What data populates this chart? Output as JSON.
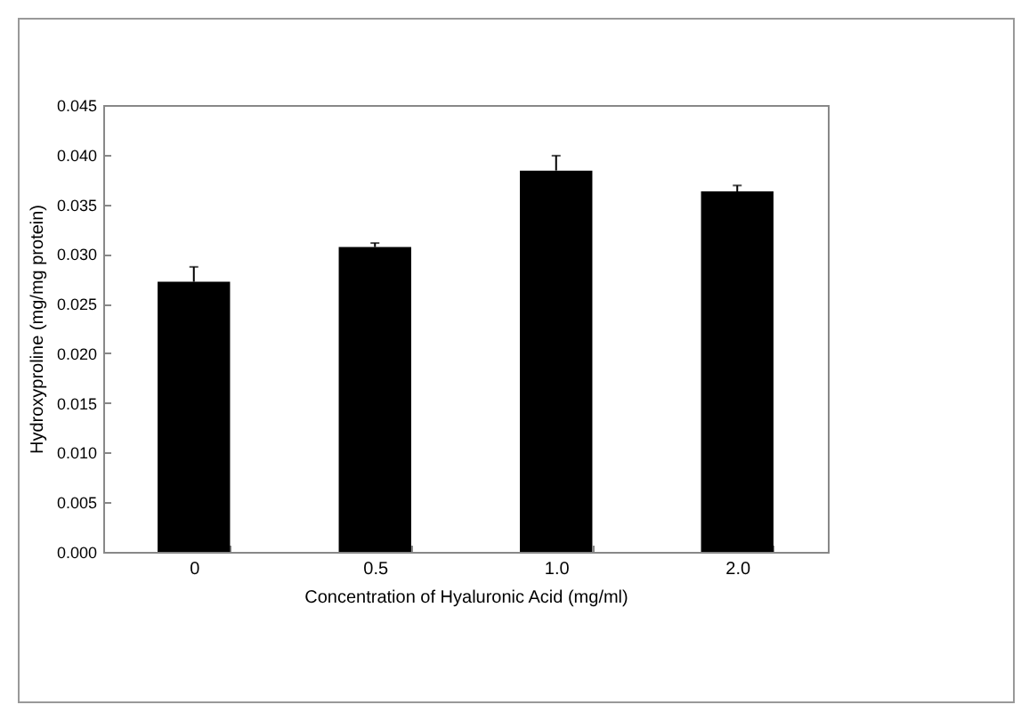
{
  "chart_data": {
    "type": "bar",
    "xlabel": "Concentration of Hyaluronic Acid (mg/ml)",
    "ylabel": "Hydroxyproline (mg/mg protein)",
    "categories": [
      "0",
      "0.5",
      "1.0",
      "2.0"
    ],
    "values": [
      0.0272,
      0.0307,
      0.0384,
      0.0363
    ],
    "errors": [
      0.0015,
      0.0004,
      0.0015,
      0.0006
    ],
    "color": "#000000",
    "ylim": [
      0,
      0.045
    ],
    "yticks": [
      {
        "value": 0,
        "label": "0.000"
      },
      {
        "value": 0.005,
        "label": "0.005"
      },
      {
        "value": 0.01,
        "label": "0.010"
      },
      {
        "value": 0.015,
        "label": "0.015"
      },
      {
        "value": 0.02,
        "label": "0.020"
      },
      {
        "value": 0.025,
        "label": "0.025"
      },
      {
        "value": 0.03,
        "label": "0.030"
      },
      {
        "value": 0.035,
        "label": "0.035"
      },
      {
        "value": 0.04,
        "label": "0.040"
      },
      {
        "value": 0.045,
        "label": "0.045"
      }
    ],
    "grid": false
  }
}
